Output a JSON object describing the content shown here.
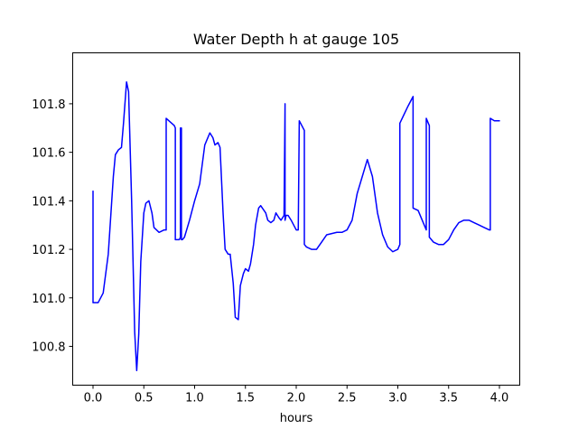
{
  "chart_data": {
    "type": "line",
    "title": "Water Depth h at gauge 105",
    "xlabel": "hours",
    "ylabel": "",
    "xlim": [
      -0.2,
      4.2
    ],
    "ylim": [
      100.64,
      102.01
    ],
    "xticks": [
      0.0,
      0.5,
      1.0,
      1.5,
      2.0,
      2.5,
      3.0,
      3.5,
      4.0
    ],
    "xtick_labels": [
      "0.0",
      "0.5",
      "1.0",
      "1.5",
      "2.0",
      "2.5",
      "3.0",
      "3.5",
      "4.0"
    ],
    "yticks": [
      100.8,
      101.0,
      101.2,
      101.4,
      101.6,
      101.8
    ],
    "ytick_labels": [
      "100.8",
      "101.0",
      "101.2",
      "101.4",
      "101.6",
      "101.8"
    ],
    "grid": false,
    "legend": "none",
    "series": [
      {
        "color": "#0000ff",
        "x": [
          0.0,
          0.0,
          0.05,
          0.1,
          0.15,
          0.2,
          0.22,
          0.25,
          0.28,
          0.3,
          0.33,
          0.35,
          0.38,
          0.41,
          0.43,
          0.45,
          0.47,
          0.5,
          0.52,
          0.55,
          0.58,
          0.6,
          0.65,
          0.7,
          0.72,
          0.72,
          0.8,
          0.81,
          0.81,
          0.85,
          0.86,
          0.86,
          0.87,
          0.87,
          0.88,
          0.88,
          0.9,
          0.95,
          1.0,
          1.05,
          1.1,
          1.15,
          1.18,
          1.2,
          1.23,
          1.25,
          1.28,
          1.3,
          1.33,
          1.35,
          1.38,
          1.4,
          1.43,
          1.45,
          1.48,
          1.5,
          1.53,
          1.55,
          1.58,
          1.6,
          1.63,
          1.65,
          1.7,
          1.72,
          1.75,
          1.78,
          1.8,
          1.83,
          1.85,
          1.88,
          1.89,
          1.89,
          1.9,
          1.92,
          1.95,
          2.0,
          2.02,
          2.03,
          2.03,
          2.08,
          2.08,
          2.1,
          2.15,
          2.2,
          2.25,
          2.3,
          2.4,
          2.45,
          2.5,
          2.55,
          2.6,
          2.65,
          2.7,
          2.75,
          2.8,
          2.85,
          2.9,
          2.95,
          3.0,
          3.02,
          3.02,
          3.1,
          3.15,
          3.15,
          3.2,
          3.25,
          3.28,
          3.28,
          3.3,
          3.31,
          3.31,
          3.35,
          3.4,
          3.45,
          3.5,
          3.55,
          3.6,
          3.65,
          3.7,
          3.75,
          3.8,
          3.85,
          3.9,
          3.91,
          3.91,
          3.95,
          4.0
        ],
        "y": [
          101.44,
          100.98,
          100.98,
          101.02,
          101.18,
          101.5,
          101.59,
          101.61,
          101.62,
          101.72,
          101.89,
          101.85,
          101.4,
          100.86,
          100.7,
          100.85,
          101.15,
          101.35,
          101.39,
          101.4,
          101.35,
          101.29,
          101.27,
          101.28,
          101.28,
          101.74,
          101.71,
          101.7,
          101.24,
          101.24,
          101.25,
          101.7,
          101.7,
          101.24,
          101.24,
          101.24,
          101.25,
          101.32,
          101.4,
          101.47,
          101.63,
          101.68,
          101.66,
          101.63,
          101.64,
          101.62,
          101.35,
          101.2,
          101.18,
          101.18,
          101.06,
          100.92,
          100.91,
          101.05,
          101.1,
          101.12,
          101.11,
          101.14,
          101.22,
          101.3,
          101.37,
          101.38,
          101.35,
          101.32,
          101.31,
          101.32,
          101.35,
          101.33,
          101.32,
          101.34,
          101.8,
          101.32,
          101.34,
          101.34,
          101.32,
          101.28,
          101.28,
          101.73,
          101.73,
          101.69,
          101.22,
          101.21,
          101.2,
          101.2,
          101.23,
          101.26,
          101.27,
          101.27,
          101.28,
          101.32,
          101.43,
          101.5,
          101.57,
          101.5,
          101.35,
          101.26,
          101.21,
          101.19,
          101.2,
          101.22,
          101.72,
          101.79,
          101.83,
          101.37,
          101.36,
          101.31,
          101.28,
          101.74,
          101.72,
          101.71,
          101.25,
          101.23,
          101.22,
          101.22,
          101.24,
          101.28,
          101.31,
          101.32,
          101.32,
          101.31,
          101.3,
          101.29,
          101.28,
          101.28,
          101.74,
          101.73,
          101.73
        ]
      }
    ]
  }
}
